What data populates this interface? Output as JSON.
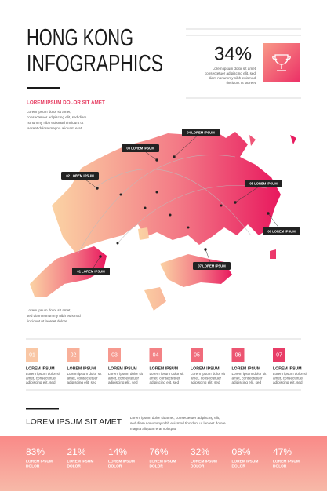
{
  "header": {
    "title": [
      "HONG KONG",
      "INFOGRAPHICS"
    ]
  },
  "stat": {
    "value": "34%",
    "text": [
      "Lorem ipsum dolor sit amet",
      "consectetuer adipiscing elit, sed",
      "diam nonummy nibh euismod",
      "tincidunt ut laoreet"
    ]
  },
  "intro": {
    "heading": "LOREM IPSUM DOLOR SIT AMET",
    "text": [
      "Lorem ipsum dolor sit amet,",
      "consectetuer adipiscing elit, sed diam",
      "nonummy nibh euismod tincidunt ut",
      "laoreet dolore magna aliquam erat"
    ]
  },
  "map": {
    "labels": [
      "01 LOREM IPSUM",
      "02 LOREM IPSUM",
      "03 LOREM IPSUM",
      "04 LOREM IPSUM",
      "05 LOREM IPSUM",
      "06 LOREM IPSUM",
      "07 LOREM IPSUM"
    ],
    "note": [
      "Lorem ipsum dolor sit amet,",
      "sed diam nonummy nibh euismod",
      "tincidunt ut laoreet dolore"
    ]
  },
  "steps": [
    {
      "number": "01",
      "title": "LOREM IPSUM",
      "text": [
        "Lorem ipsum dolor sit",
        "amet, consectetuer",
        "adipiscing elit, sed"
      ]
    },
    {
      "number": "02",
      "title": "LOREM IPSUM",
      "text": [
        "Lorem ipsum dolor sit",
        "amet, consectetuer",
        "adipiscing elit, sed"
      ]
    },
    {
      "number": "03",
      "title": "LOREM IPSUM",
      "text": [
        "Lorem ipsum dolor sit",
        "amet, consectetuer",
        "adipiscing elit, sed"
      ]
    },
    {
      "number": "04",
      "title": "LOREM IPSUM",
      "text": [
        "Lorem ipsum dolor sit",
        "amet, consectetuer",
        "adipiscing elit, sed"
      ]
    },
    {
      "number": "05",
      "title": "LOREM IPSUM",
      "text": [
        "Lorem ipsum dolor sit",
        "amet, consectetuer",
        "adipiscing elit, sed"
      ]
    },
    {
      "number": "06",
      "title": "LOREM IPSUM",
      "text": [
        "Lorem ipsum dolor sit",
        "amet, consectetuer",
        "adipiscing elit, sed"
      ]
    },
    {
      "number": "07",
      "title": "LOREM IPSUM",
      "text": [
        "Lorem ipsum dolor sit",
        "amet, consectetuer",
        "adipiscing elit, sed"
      ]
    }
  ],
  "footer": {
    "heading": "LOREM IPSUM SIT AMET",
    "text": [
      "Lorem ipsum dolor sit amet, consectetuer adipiscing elit,",
      "sed diam nonummy nibh euismod tincidunt ut laoreet dolore",
      "magna aliquam erat volutpat."
    ],
    "stats": [
      {
        "value": "83%",
        "label": [
          "LOREM IPSUM",
          "DOLOR"
        ]
      },
      {
        "value": "21%",
        "label": [
          "LOREM IPSUM",
          "DOLOR"
        ]
      },
      {
        "value": "14%",
        "label": [
          "LOREM IPSUM",
          "DOLOR"
        ]
      },
      {
        "value": "76%",
        "label": [
          "LOREM IPSUM",
          "DOLOR"
        ]
      },
      {
        "value": "32%",
        "label": [
          "LOREM IPSUM",
          "DOLOR"
        ]
      },
      {
        "value": "08%",
        "label": [
          "LOREM IPSUM",
          "DOLOR"
        ]
      },
      {
        "value": "47%",
        "label": [
          "LOREM IPSUM",
          "DOLOR"
        ]
      }
    ]
  }
}
